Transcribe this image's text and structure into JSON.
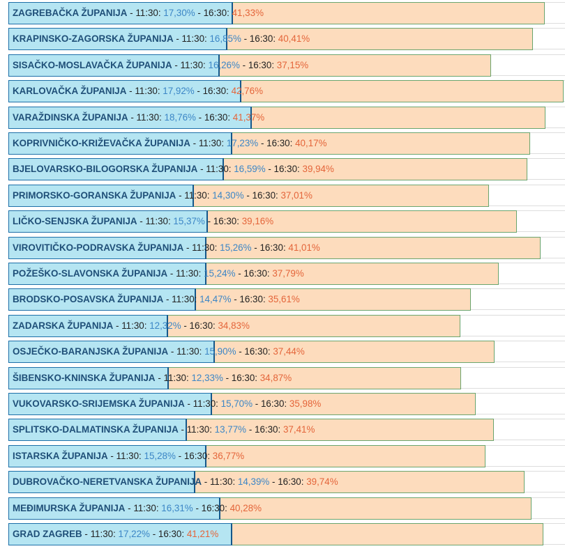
{
  "chart_data": {
    "type": "bar",
    "orientation": "horizontal",
    "xlim": [
      0,
      42.76
    ],
    "categories": [
      "ZAGREBAČKA ŽUPANIJA",
      "KRAPINSKO-ZAGORSKA ŽUPANIJA",
      "SISAČKO-MOSLAVAČKA ŽUPANIJA",
      "KARLOVAČKA ŽUPANIJA",
      "VARAŽDINSKA ŽUPANIJA",
      "KOPRIVNIČKO-KRIŽEVAČKA ŽUPANIJA",
      "BJELOVARSKO-BILOGORSKA ŽUPANIJA",
      "PRIMORSKO-GORANSKA ŽUPANIJA",
      "LIČKO-SENJSKA ŽUPANIJA",
      "VIROVITIČKO-PODRAVSKA ŽUPANIJA",
      "POŽEŠKO-SLAVONSKA ŽUPANIJA",
      "BRODSKO-POSAVSKA ŽUPANIJA",
      "ZADARSKA ŽUPANIJA",
      "OSJEČKO-BARANJSKA ŽUPANIJA",
      "ŠIBENSKO-KNINSKA ŽUPANIJA",
      "VUKOVARSKO-SRIJEMSKA ŽUPANIJA",
      "SPLITSKO-DALMATINSKA ŽUPANIJA",
      "ISTARSKA ŽUPANIJA",
      "DUBROVAČKO-NERETVANSKA ŽUPANIJA",
      "MEĐIMURSKA ŽUPANIJA",
      "GRAD ZAGREB"
    ],
    "series": [
      {
        "name": "11:30",
        "color": "#b5e5f2",
        "text_color": "#3c86c6",
        "values": [
          17.3,
          16.85,
          16.26,
          17.92,
          18.76,
          17.23,
          16.59,
          14.3,
          15.37,
          15.26,
          15.24,
          14.47,
          12.32,
          15.9,
          12.33,
          15.7,
          13.77,
          15.28,
          14.39,
          16.31,
          17.22
        ],
        "labels": [
          "17,30%",
          "16,85%",
          "16,26%",
          "17,92%",
          "18,76%",
          "17,23%",
          "16,59%",
          "14,30%",
          "15,37%",
          "15,26%",
          "15,24%",
          "14,47%",
          "12,32%",
          "15,90%",
          "12,33%",
          "15,70%",
          "13,77%",
          "15,28%",
          "14,39%",
          "16,31%",
          "17,22%"
        ]
      },
      {
        "name": "16:30",
        "color": "#fddcbd",
        "text_color": "#e4653a",
        "values": [
          41.33,
          40.41,
          37.15,
          42.76,
          41.37,
          40.17,
          39.94,
          37.01,
          39.16,
          41.01,
          37.79,
          35.61,
          34.83,
          37.44,
          34.87,
          35.98,
          37.41,
          36.77,
          39.74,
          40.28,
          41.21
        ],
        "labels": [
          "41,33%",
          "40,41%",
          "37,15%",
          "42,76%",
          "41,37%",
          "40,17%",
          "39,94%",
          "37,01%",
          "39,16%",
          "41,01%",
          "37,79%",
          "35,61%",
          "34,83%",
          "37,44%",
          "34,87%",
          "35,98%",
          "37,41%",
          "36,77%",
          "39,74%",
          "40,28%",
          "41,21%"
        ]
      }
    ],
    "separator": " - ",
    "time_suffix": ": "
  }
}
